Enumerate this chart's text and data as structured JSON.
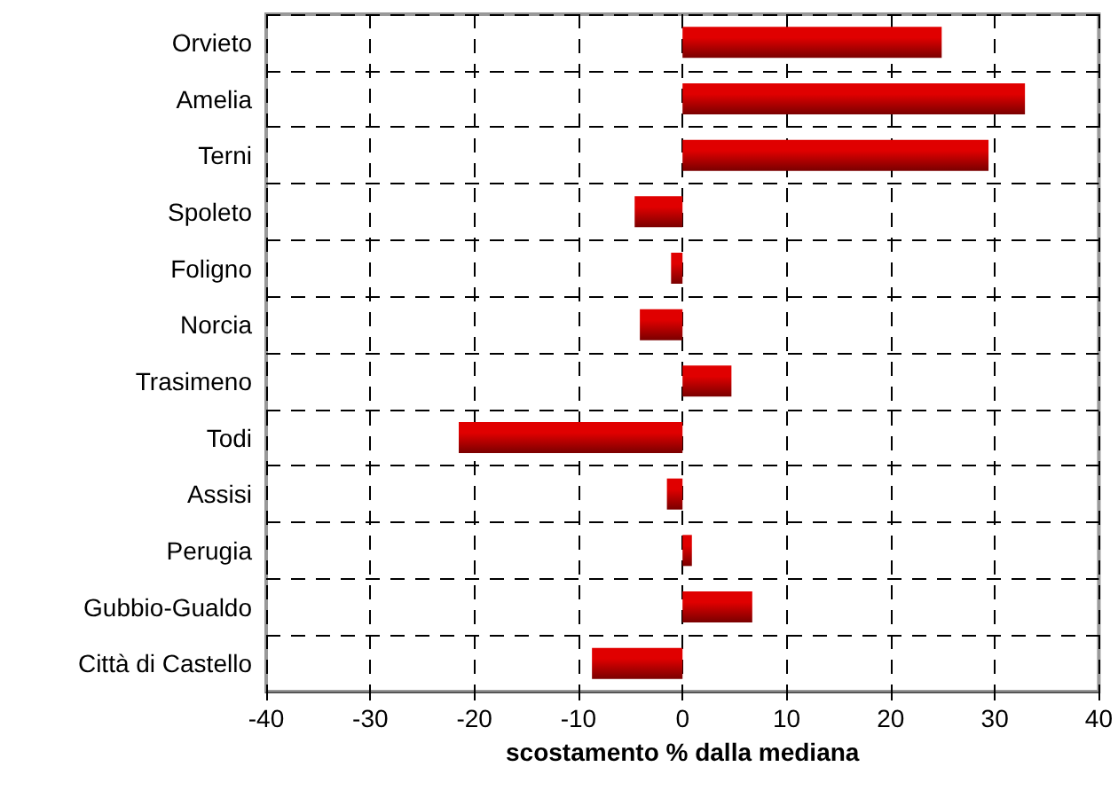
{
  "chart_data": {
    "type": "bar",
    "orientation": "horizontal",
    "xlabel": "scostamento % dalla mediana",
    "categories": [
      "Orvieto",
      "Amelia",
      "Terni",
      "Spoleto",
      "Foligno",
      "Norcia",
      "Trasimeno",
      "Todi",
      "Assisi",
      "Perugia",
      "Gubbio-Gualdo",
      "Città di Castello"
    ],
    "values": [
      24.9,
      32.9,
      29.4,
      -4.6,
      -1.1,
      -4.1,
      4.7,
      -21.5,
      -1.5,
      0.9,
      6.7,
      -8.7
    ],
    "color": "#e00000",
    "xlim": [
      -40,
      40
    ],
    "xticks": [
      -40,
      -30,
      -20,
      -10,
      0,
      10,
      20,
      30,
      40
    ],
    "grid": true
  }
}
